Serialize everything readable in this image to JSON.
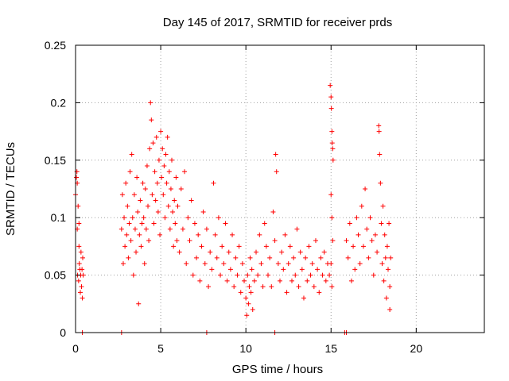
{
  "chart_data": {
    "type": "scatter",
    "title": "Day 145 of 2017, SRMTID for receiver prds",
    "xlabel": "GPS time / hours",
    "ylabel": "SRMTID / TECUs",
    "xlim": [
      0,
      24
    ],
    "ylim": [
      0,
      0.25
    ],
    "xticks": [
      0,
      5,
      10,
      15,
      20
    ],
    "yticks": [
      0,
      0.05,
      0.1,
      0.15,
      0.2,
      0.25
    ],
    "xtick_labels": [
      "0",
      "5",
      "10",
      "15",
      "20"
    ],
    "ytick_labels": [
      "0",
      "0.05",
      "0.1",
      "0.15",
      "0.2",
      "0.25"
    ],
    "grid": true,
    "marker": "+",
    "color": "#ff0000",
    "series": [
      {
        "name": "SRMTID",
        "points": [
          [
            0.0,
            0.12
          ],
          [
            0.05,
            0.135
          ],
          [
            0.08,
            0.14
          ],
          [
            0.1,
            0.09
          ],
          [
            0.12,
            0.05
          ],
          [
            0.15,
            0.11
          ],
          [
            0.18,
            0.045
          ],
          [
            0.2,
            0.095
          ],
          [
            0.22,
            0.06
          ],
          [
            0.25,
            0.055
          ],
          [
            0.28,
            0.035
          ],
          [
            0.3,
            0.05
          ],
          [
            0.32,
            0.07
          ],
          [
            0.35,
            0.04
          ],
          [
            0.38,
            0.055
          ],
          [
            0.4,
            0.03
          ],
          [
            0.42,
            0.065
          ],
          [
            0.45,
            0.05
          ],
          [
            0.1,
            0.13
          ],
          [
            0.2,
            0.075
          ],
          [
            2.7,
            0.0
          ],
          [
            0.4,
            0.0
          ],
          [
            7.7,
            0.0
          ],
          [
            11.7,
            0.0
          ],
          [
            15.8,
            0.0
          ],
          [
            15.9,
            0.0
          ],
          [
            2.7,
            0.09
          ],
          [
            2.75,
            0.12
          ],
          [
            2.8,
            0.06
          ],
          [
            2.85,
            0.1
          ],
          [
            2.9,
            0.075
          ],
          [
            2.95,
            0.13
          ],
          [
            3.0,
            0.085
          ],
          [
            3.05,
            0.11
          ],
          [
            3.1,
            0.065
          ],
          [
            3.15,
            0.095
          ],
          [
            3.2,
            0.14
          ],
          [
            3.25,
            0.08
          ],
          [
            3.3,
            0.155
          ],
          [
            3.35,
            0.1
          ],
          [
            3.4,
            0.05
          ],
          [
            3.45,
            0.12
          ],
          [
            3.5,
            0.09
          ],
          [
            3.55,
            0.07
          ],
          [
            3.6,
            0.135
          ],
          [
            3.65,
            0.105
          ],
          [
            3.7,
            0.025
          ],
          [
            3.75,
            0.085
          ],
          [
            3.8,
            0.115
          ],
          [
            3.85,
            0.075
          ],
          [
            3.9,
            0.095
          ],
          [
            3.95,
            0.13
          ],
          [
            4.0,
            0.1
          ],
          [
            4.05,
            0.06
          ],
          [
            4.1,
            0.125
          ],
          [
            4.15,
            0.09
          ],
          [
            4.2,
            0.145
          ],
          [
            4.25,
            0.11
          ],
          [
            4.3,
            0.08
          ],
          [
            4.35,
            0.16
          ],
          [
            4.4,
            0.2
          ],
          [
            4.45,
            0.185
          ],
          [
            4.5,
            0.12
          ],
          [
            4.55,
            0.165
          ],
          [
            4.6,
            0.095
          ],
          [
            4.65,
            0.14
          ],
          [
            4.7,
            0.115
          ],
          [
            4.75,
            0.17
          ],
          [
            4.8,
            0.13
          ],
          [
            4.85,
            0.105
          ],
          [
            4.9,
            0.15
          ],
          [
            4.95,
            0.085
          ],
          [
            5.0,
            0.175
          ],
          [
            5.05,
            0.135
          ],
          [
            5.1,
            0.16
          ],
          [
            5.15,
            0.12
          ],
          [
            5.2,
            0.145
          ],
          [
            5.25,
            0.1
          ],
          [
            5.3,
            0.155
          ],
          [
            5.35,
            0.13
          ],
          [
            5.4,
            0.17
          ],
          [
            5.45,
            0.11
          ],
          [
            5.5,
            0.14
          ],
          [
            5.55,
            0.09
          ],
          [
            5.6,
            0.125
          ],
          [
            5.65,
            0.15
          ],
          [
            5.7,
            0.105
          ],
          [
            5.75,
            0.075
          ],
          [
            5.8,
            0.115
          ],
          [
            5.85,
            0.095
          ],
          [
            5.9,
            0.135
          ],
          [
            5.95,
            0.08
          ],
          [
            6.0,
            0.11
          ],
          [
            6.1,
            0.07
          ],
          [
            6.2,
            0.125
          ],
          [
            6.3,
            0.09
          ],
          [
            6.4,
            0.14
          ],
          [
            6.5,
            0.06
          ],
          [
            6.6,
            0.1
          ],
          [
            6.7,
            0.08
          ],
          [
            6.8,
            0.115
          ],
          [
            6.9,
            0.05
          ],
          [
            7.0,
            0.095
          ],
          [
            7.1,
            0.065
          ],
          [
            7.2,
            0.085
          ],
          [
            7.3,
            0.045
          ],
          [
            7.4,
            0.075
          ],
          [
            7.5,
            0.105
          ],
          [
            7.6,
            0.06
          ],
          [
            7.7,
            0.09
          ],
          [
            7.8,
            0.04
          ],
          [
            7.9,
            0.07
          ],
          [
            8.0,
            0.055
          ],
          [
            8.1,
            0.13
          ],
          [
            8.2,
            0.085
          ],
          [
            8.3,
            0.065
          ],
          [
            8.4,
            0.1
          ],
          [
            8.5,
            0.05
          ],
          [
            8.6,
            0.075
          ],
          [
            8.7,
            0.06
          ],
          [
            8.8,
            0.095
          ],
          [
            8.9,
            0.045
          ],
          [
            9.0,
            0.07
          ],
          [
            9.1,
            0.055
          ],
          [
            9.2,
            0.085
          ],
          [
            9.3,
            0.04
          ],
          [
            9.4,
            0.065
          ],
          [
            9.5,
            0.05
          ],
          [
            9.6,
            0.075
          ],
          [
            9.7,
            0.035
          ],
          [
            9.8,
            0.06
          ],
          [
            9.9,
            0.045
          ],
          [
            10.0,
            0.03
          ],
          [
            10.05,
            0.015
          ],
          [
            10.1,
            0.05
          ],
          [
            10.15,
            0.025
          ],
          [
            10.2,
            0.04
          ],
          [
            10.25,
            0.065
          ],
          [
            10.3,
            0.035
          ],
          [
            10.35,
            0.055
          ],
          [
            10.4,
            0.02
          ],
          [
            10.5,
            0.045
          ],
          [
            10.6,
            0.07
          ],
          [
            10.7,
            0.05
          ],
          [
            10.8,
            0.085
          ],
          [
            10.9,
            0.06
          ],
          [
            11.0,
            0.04
          ],
          [
            11.1,
            0.095
          ],
          [
            11.2,
            0.075
          ],
          [
            11.3,
            0.05
          ],
          [
            11.4,
            0.065
          ],
          [
            11.5,
            0.04
          ],
          [
            11.6,
            0.105
          ],
          [
            11.7,
            0.08
          ],
          [
            11.75,
            0.155
          ],
          [
            11.8,
            0.14
          ],
          [
            11.9,
            0.06
          ],
          [
            12.0,
            0.045
          ],
          [
            12.1,
            0.07
          ],
          [
            12.2,
            0.055
          ],
          [
            12.3,
            0.085
          ],
          [
            12.4,
            0.035
          ],
          [
            12.5,
            0.06
          ],
          [
            12.6,
            0.075
          ],
          [
            12.7,
            0.045
          ],
          [
            12.8,
            0.065
          ],
          [
            12.9,
            0.05
          ],
          [
            13.0,
            0.09
          ],
          [
            13.1,
            0.04
          ],
          [
            13.2,
            0.07
          ],
          [
            13.3,
            0.055
          ],
          [
            13.4,
            0.03
          ],
          [
            13.5,
            0.065
          ],
          [
            13.6,
            0.045
          ],
          [
            13.7,
            0.075
          ],
          [
            13.8,
            0.05
          ],
          [
            13.9,
            0.06
          ],
          [
            14.0,
            0.04
          ],
          [
            14.1,
            0.08
          ],
          [
            14.2,
            0.055
          ],
          [
            14.3,
            0.035
          ],
          [
            14.4,
            0.065
          ],
          [
            14.5,
            0.05
          ],
          [
            14.6,
            0.07
          ],
          [
            14.7,
            0.045
          ],
          [
            14.8,
            0.06
          ],
          [
            14.9,
            0.05
          ],
          [
            14.95,
            0.215
          ],
          [
            15.0,
            0.205
          ],
          [
            15.02,
            0.195
          ],
          [
            15.05,
            0.175
          ],
          [
            15.07,
            0.165
          ],
          [
            15.1,
            0.16
          ],
          [
            15.12,
            0.15
          ],
          [
            15.0,
            0.12
          ],
          [
            15.05,
            0.1
          ],
          [
            15.1,
            0.08
          ],
          [
            15.0,
            0.06
          ],
          [
            15.05,
            0.04
          ],
          [
            15.9,
            0.08
          ],
          [
            16.0,
            0.065
          ],
          [
            16.1,
            0.095
          ],
          [
            16.2,
            0.045
          ],
          [
            16.3,
            0.075
          ],
          [
            16.4,
            0.055
          ],
          [
            16.5,
            0.1
          ],
          [
            16.6,
            0.085
          ],
          [
            16.7,
            0.06
          ],
          [
            16.8,
            0.11
          ],
          [
            16.9,
            0.075
          ],
          [
            17.0,
            0.125
          ],
          [
            17.1,
            0.09
          ],
          [
            17.2,
            0.065
          ],
          [
            17.3,
            0.1
          ],
          [
            17.4,
            0.08
          ],
          [
            17.5,
            0.05
          ],
          [
            17.6,
            0.085
          ],
          [
            17.7,
            0.07
          ],
          [
            17.8,
            0.18
          ],
          [
            17.82,
            0.175
          ],
          [
            17.85,
            0.155
          ],
          [
            17.9,
            0.13
          ],
          [
            17.95,
            0.095
          ],
          [
            18.0,
            0.06
          ],
          [
            18.05,
            0.11
          ],
          [
            18.1,
            0.045
          ],
          [
            18.15,
            0.085
          ],
          [
            18.2,
            0.065
          ],
          [
            18.25,
            0.03
          ],
          [
            18.3,
            0.075
          ],
          [
            18.35,
            0.055
          ],
          [
            18.4,
            0.095
          ],
          [
            18.45,
            0.04
          ],
          [
            18.5,
            0.065
          ],
          [
            18.45,
            0.02
          ]
        ]
      }
    ]
  }
}
